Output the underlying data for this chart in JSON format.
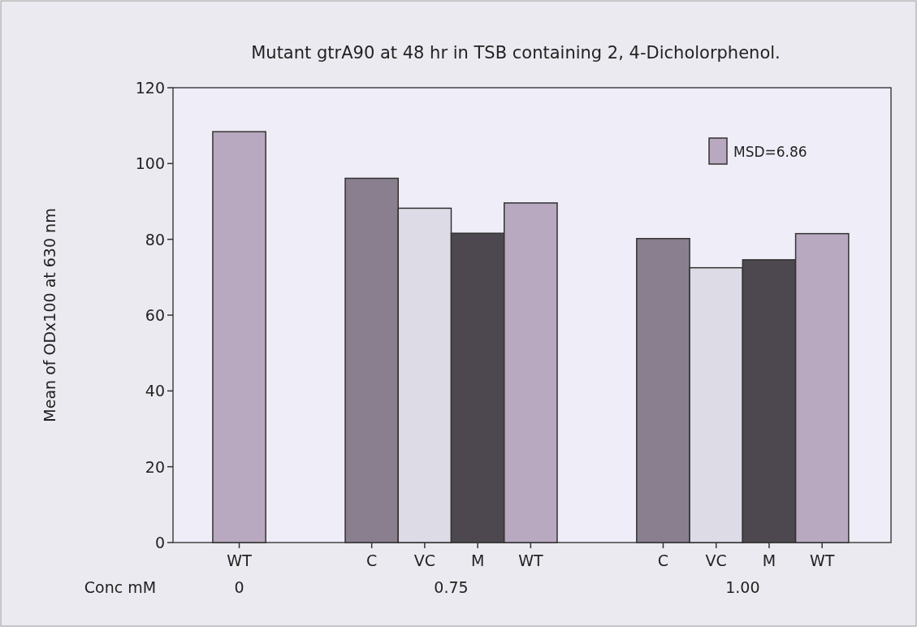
{
  "chart_data": {
    "type": "bar",
    "title": "Mutant gtrA90 at 48 hr in TSB containing 2, 4-Dicholorphenol.",
    "ylabel": "Mean of ODx100 at 630 nm",
    "categories": [
      "WT",
      null,
      "C",
      "VC",
      "M",
      "WT",
      null,
      "C",
      "VC",
      "M",
      "WT"
    ],
    "series": [
      {
        "name": "MSD=6.86",
        "color": "#b8a9c0",
        "values": [
          108.4,
          null,
          96.1,
          88.2,
          81.6,
          89.6,
          null,
          80.2,
          72.5,
          74.6,
          81.5
        ],
        "colors": [
          "#b8a9c0",
          null,
          "#8a7f8e",
          "#dcdbe6",
          "#4d484f",
          "#b8a9c0",
          null,
          "#8a7f8e",
          "#dcdbe6",
          "#4d484f",
          "#b8a9c0"
        ]
      }
    ],
    "ylim": [
      0,
      120
    ],
    "yticks": [
      0,
      20,
      40,
      60,
      80,
      100,
      120
    ],
    "grid": false,
    "legend": "top right",
    "annotations": [
      "Conc mM",
      "0",
      "0.75",
      "1.00"
    ]
  }
}
